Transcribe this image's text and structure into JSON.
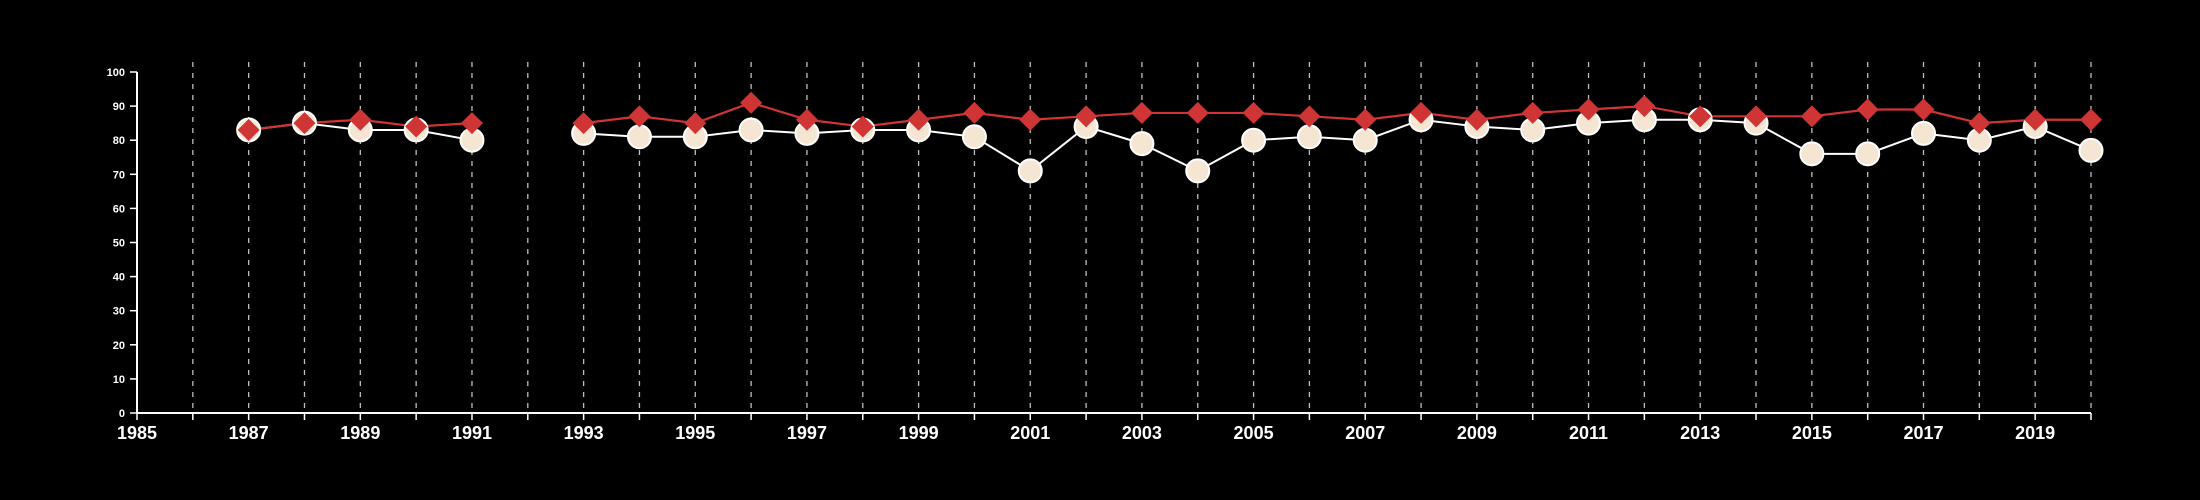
{
  "chart_data": {
    "type": "line",
    "title": "",
    "xlabel": "",
    "ylabel": "",
    "xlim": [
      1985,
      2020
    ],
    "ylim": [
      0,
      100
    ],
    "y_ticks": [
      0,
      10,
      20,
      30,
      40,
      50,
      60,
      70,
      80,
      90,
      100
    ],
    "x_tick_labels": [
      1985,
      1987,
      1989,
      1991,
      1993,
      1995,
      1997,
      1999,
      2001,
      2003,
      2005,
      2007,
      2009,
      2011,
      2013,
      2015,
      2017,
      2019
    ],
    "vertical_gridlines": "every year, dashed",
    "legend": "none",
    "series": [
      {
        "color": "#d03535",
        "marker": "diamond",
        "x": [
          1987,
          1988,
          1989,
          1990,
          1991,
          1993,
          1994,
          1995,
          1996,
          1997,
          1998,
          1999,
          2000,
          2001,
          2002,
          2003,
          2004,
          2005,
          2006,
          2007,
          2008,
          2009,
          2010,
          2011,
          2012,
          2013,
          2014,
          2015,
          2016,
          2017,
          2018,
          2019,
          2020
        ],
        "values": [
          83,
          85,
          86,
          84,
          85,
          85,
          87,
          85,
          91,
          86,
          84,
          86,
          88,
          86,
          87,
          88,
          88,
          88,
          87,
          86,
          88,
          86,
          88,
          89,
          90,
          87,
          87,
          87,
          89,
          89,
          85,
          86,
          86
        ]
      },
      {
        "color": "#ffffff",
        "fill": "#f5e6d3",
        "marker": "circle",
        "x": [
          1987,
          1988,
          1989,
          1990,
          1991,
          1993,
          1994,
          1995,
          1996,
          1997,
          1998,
          1999,
          2000,
          2001,
          2002,
          2003,
          2004,
          2005,
          2006,
          2007,
          2008,
          2009,
          2010,
          2011,
          2012,
          2013,
          2014,
          2015,
          2016,
          2017,
          2018,
          2019,
          2020
        ],
        "values": [
          83,
          85,
          83,
          83,
          80,
          82,
          81,
          81,
          83,
          82,
          83,
          83,
          81,
          71,
          84,
          79,
          71,
          80,
          81,
          80,
          86,
          84,
          83,
          85,
          86,
          86,
          85,
          76,
          76,
          82,
          80,
          84,
          77
        ]
      }
    ]
  }
}
